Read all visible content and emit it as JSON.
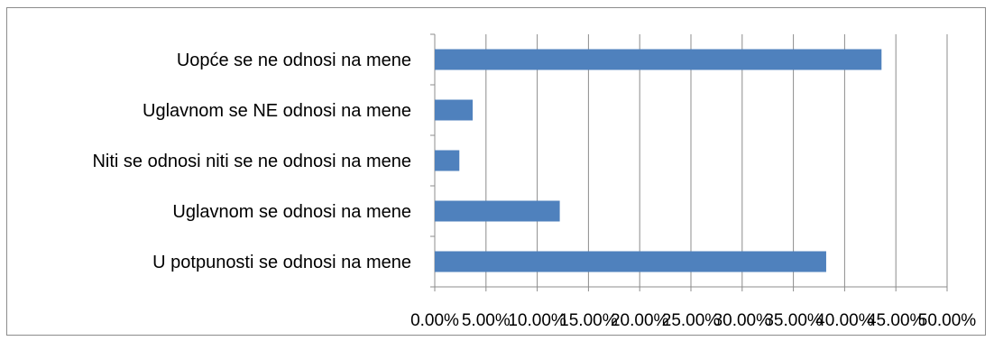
{
  "chart_data": {
    "type": "bar",
    "orientation": "horizontal",
    "title": "",
    "xlabel": "",
    "ylabel": "",
    "categories": [
      "U potpunosti se odnosi na mene",
      "Uglavnom se  odnosi na mene",
      "Niti se odnosi niti se ne odnosi na mene",
      "Uglavnom se  NE odnosi na mene",
      "Uopće se ne odnosi na mene"
    ],
    "values": [
      38.2,
      12.2,
      2.4,
      3.7,
      43.6
    ],
    "xlim": [
      0,
      50
    ],
    "xticks": [
      0,
      5,
      10,
      15,
      20,
      25,
      30,
      35,
      40,
      45,
      50
    ],
    "xtick_labels": [
      "0.00%",
      "5.00%",
      "10.00%",
      "15.00%",
      "20.00%",
      "25.00%",
      "30.00%",
      "35.00%",
      "40.00%",
      "45.00%",
      "50.00%"
    ],
    "grid": "vertical",
    "legend": "none",
    "colors": {
      "bar": "#4f81bd",
      "grid": "#8c8c8c",
      "axis": "#8c8c8c"
    }
  }
}
